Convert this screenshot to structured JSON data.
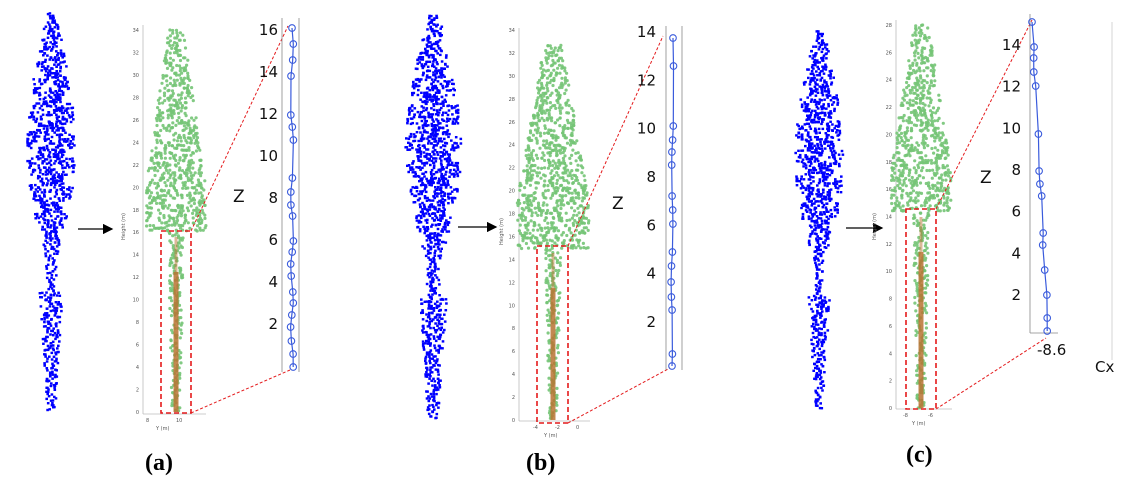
{
  "captions": [
    "(a)",
    "(b)",
    "(c)"
  ],
  "panels": [
    {
      "id": "a",
      "height_axis_label": "Height (m)",
      "y_axis_label": "Y (m)",
      "height_ticks": [
        "0",
        "2",
        "4",
        "6",
        "8",
        "10",
        "12",
        "14",
        "16",
        "18",
        "20",
        "22",
        "24",
        "26",
        "28",
        "30",
        "32",
        "34"
      ],
      "y_ticks": [
        "8",
        "10"
      ],
      "z_label": "Z",
      "z_ticks": [
        "2",
        "4",
        "6",
        "8",
        "10",
        "12",
        "14",
        "16"
      ]
    },
    {
      "id": "b",
      "height_axis_label": "Height (m)",
      "y_axis_label": "Y (m)",
      "height_ticks": [
        "0",
        "2",
        "4",
        "6",
        "8",
        "10",
        "12",
        "14",
        "16",
        "18",
        "20",
        "22",
        "24",
        "26",
        "28",
        "30",
        "32",
        "34"
      ],
      "y_ticks": [
        "-4",
        "-2",
        "0"
      ],
      "z_label": "Z",
      "z_ticks": [
        "2",
        "4",
        "6",
        "8",
        "10",
        "12",
        "14"
      ]
    },
    {
      "id": "c",
      "height_axis_label": "Height (m)",
      "y_axis_label": "Y (m)",
      "height_ticks": [
        "0",
        "2",
        "4",
        "6",
        "8",
        "10",
        "12",
        "14",
        "16",
        "18",
        "20",
        "22",
        "24",
        "26",
        "28"
      ],
      "y_ticks": [
        "-8",
        "-6"
      ],
      "z_label": "Z",
      "z_ticks": [
        "2",
        "4",
        "6",
        "8",
        "10",
        "12",
        "14"
      ],
      "cx_tick": "-8.6",
      "cx_label": "Cx"
    }
  ],
  "colors": {
    "tree_blue": "#0000ff",
    "canopy_green": "#74c476",
    "stem_brown": "#b87333",
    "crop_box": "#e41a1c",
    "skeleton_line": "#3a5bdc"
  }
}
